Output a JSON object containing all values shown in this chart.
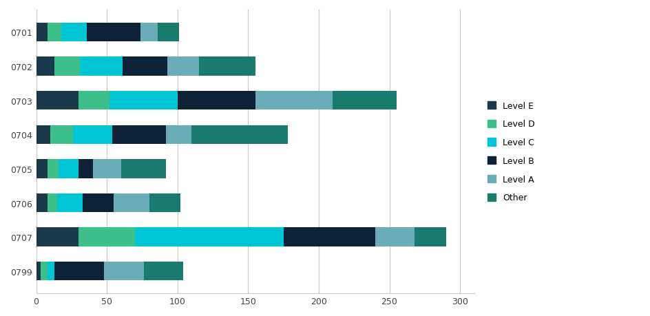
{
  "categories": [
    "0701",
    "0702",
    "0703",
    "0704",
    "0705",
    "0706",
    "0707",
    "0799"
  ],
  "levels": [
    "Level E",
    "Level D",
    "Level C",
    "Level B",
    "Level A",
    "Other"
  ],
  "colors": [
    "#1a3a4a",
    "#3dbf8a",
    "#00c5d4",
    "#0d2235",
    "#6aacb8",
    "#1a7a6e"
  ],
  "data": {
    "Level E": [
      8,
      13,
      30,
      10,
      8,
      8,
      30,
      3
    ],
    "Level D": [
      10,
      18,
      22,
      16,
      8,
      7,
      40,
      5
    ],
    "Level C": [
      18,
      30,
      48,
      28,
      14,
      18,
      105,
      5
    ],
    "Level B": [
      38,
      32,
      55,
      38,
      10,
      22,
      65,
      35
    ],
    "Level A": [
      12,
      22,
      55,
      18,
      20,
      25,
      28,
      28
    ],
    "Other": [
      15,
      40,
      45,
      68,
      32,
      22,
      22,
      28
    ]
  },
  "xlim": [
    0,
    310
  ],
  "xticks": [
    0,
    50,
    100,
    150,
    200,
    250,
    300
  ],
  "background_color": "#ffffff",
  "grid_color": "#c8c8c8",
  "legend_fontsize": 9,
  "tick_fontsize": 9,
  "bar_height": 0.55
}
